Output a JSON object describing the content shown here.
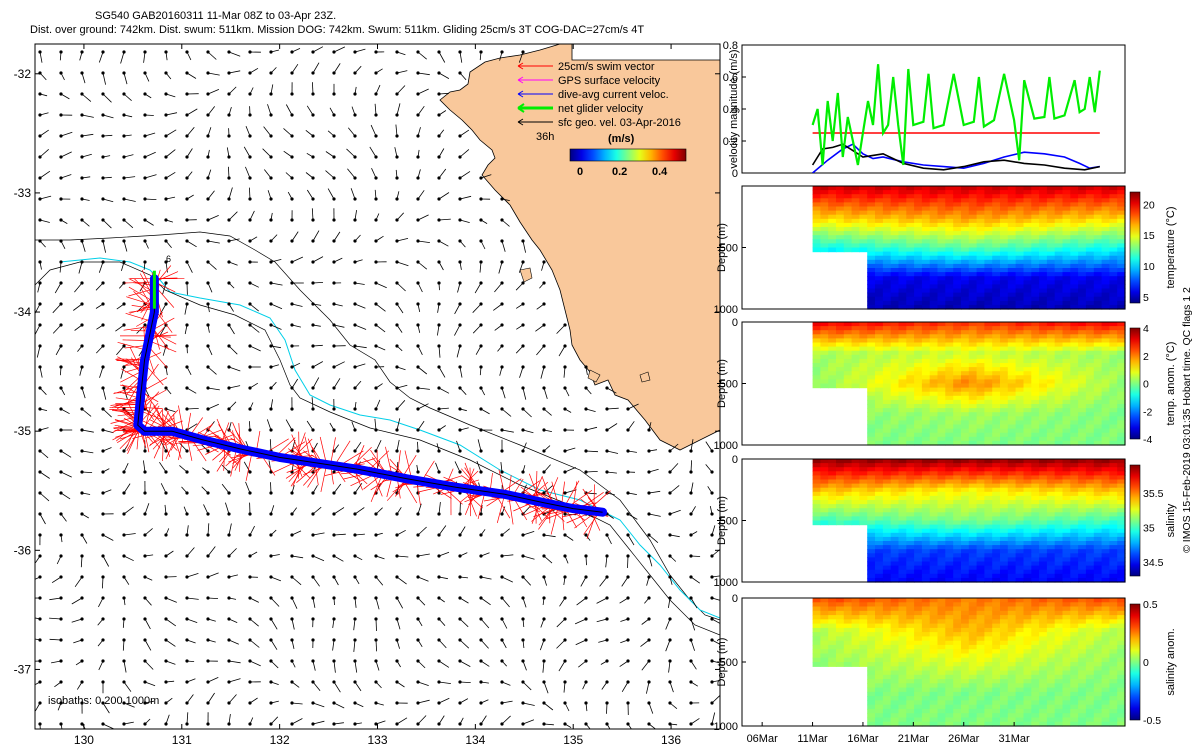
{
  "header": {
    "line1": "SG540 GAB20160311 11-Mar 08Z to 03-Apr 23Z.",
    "line2": "Dist. over ground: 742km. Dist. swum: 511km. Mission DOG: 742km. Swum: 511km. Gliding 25cm/s 3T COG-DAC=27cm/s 4T"
  },
  "side_note": "© IMOS 15-Feb-2019 03:01:35 Hobart time. QC flags 1 2",
  "colors": {
    "land": "#f9c89b",
    "swim_vector": "#ff0000",
    "gps_velocity": "#ff00ff",
    "dive_avg_current": "#0000ff",
    "net_glider": "#00ee00",
    "sfc_geo": "#000000",
    "isobath_200": "#00cfe8"
  },
  "chart_data": [
    {
      "type": "scatter",
      "panel": "map",
      "x_ticks": [
        "130",
        "131",
        "132",
        "133",
        "134",
        "135",
        "136"
      ],
      "y_ticks": [
        "-32",
        "-33",
        "-34",
        "-35",
        "-36",
        "-37"
      ],
      "xlim": [
        129.5,
        136.5
      ],
      "ylim": [
        -37.5,
        -31.75
      ],
      "legend": {
        "position": "top-right",
        "entries": [
          {
            "label": "25cm/s swim vector",
            "color": "#ff0000"
          },
          {
            "label": "GPS surface velocity",
            "color": "#ff00ff"
          },
          {
            "label": "dive-avg current veloc.",
            "color": "#0000ff"
          },
          {
            "label": "net glider velocity",
            "color": "#00ee00"
          },
          {
            "label": "sfc geo. vel. 03-Apr-2016",
            "color": "#000000"
          }
        ],
        "time_label": "36h",
        "colorbar_title": "(m/s)",
        "colorbar_ticks": [
          "0",
          "0.2",
          "0.4"
        ]
      },
      "isobath_label": "isobaths: 0   200  1000m",
      "start_marker": "6",
      "track": {
        "lon": [
          130.72,
          130.72,
          130.62,
          130.58,
          130.55,
          130.62,
          130.9,
          131.2,
          131.6,
          132.0,
          132.4,
          132.8,
          133.3,
          133.8,
          134.3,
          134.7,
          135.0,
          135.3
        ],
        "lat": [
          -33.72,
          -34.0,
          -34.4,
          -34.7,
          -34.95,
          -35.0,
          -35.0,
          -35.07,
          -35.15,
          -35.22,
          -35.27,
          -35.32,
          -35.4,
          -35.47,
          -35.53,
          -35.6,
          -35.65,
          -35.68
        ]
      }
    },
    {
      "type": "line",
      "panel": "velocity",
      "ylabel": "velocity magnitude (m/s)",
      "ylim": [
        0,
        0.8
      ],
      "y_ticks": [
        "0",
        "0.2",
        "0.4",
        "0.6",
        "0.8"
      ],
      "series": [
        {
          "color": "#ff0000",
          "x": [
            11,
            39.5
          ],
          "values": [
            0.25,
            0.25
          ]
        },
        {
          "color": "#0000ff",
          "x": [
            11,
            12.5,
            14,
            15,
            16,
            17,
            18,
            20,
            22,
            24,
            26,
            28,
            30,
            32,
            34,
            36,
            37.5,
            38.5,
            39.5
          ],
          "values": [
            0.0,
            0.08,
            0.15,
            0.18,
            0.12,
            0.09,
            0.1,
            0.07,
            0.05,
            0.04,
            0.03,
            0.06,
            0.1,
            0.13,
            0.12,
            0.1,
            0.06,
            0.03,
            0.04
          ]
        },
        {
          "color": "#000000",
          "x": [
            11,
            12,
            13,
            14,
            15,
            16,
            17,
            18,
            19,
            20,
            22,
            24,
            26,
            28,
            30,
            32,
            34,
            36,
            38,
            39.5
          ],
          "values": [
            0.05,
            0.15,
            0.16,
            0.18,
            0.14,
            0.1,
            0.11,
            0.12,
            0.09,
            0.06,
            0.03,
            0.02,
            0.04,
            0.07,
            0.08,
            0.06,
            0.05,
            0.03,
            0.02,
            0.04
          ]
        },
        {
          "color": "#00ee00",
          "x": [
            11,
            11.5,
            12,
            12.5,
            13,
            13.5,
            14,
            14.5,
            15,
            15.5,
            16,
            16.5,
            17,
            17.5,
            18,
            18.5,
            19,
            19.5,
            20,
            20.5,
            21,
            22,
            22.5,
            23,
            24,
            25,
            26,
            27,
            27.5,
            28,
            29,
            30,
            31,
            31.5,
            32,
            33,
            34,
            34.5,
            35,
            36,
            37,
            37.5,
            38,
            38.5,
            39,
            39.5
          ],
          "values": [
            0.3,
            0.4,
            0.05,
            0.45,
            0.2,
            0.5,
            0.1,
            0.35,
            0.2,
            0.05,
            0.25,
            0.45,
            0.3,
            0.68,
            0.25,
            0.3,
            0.6,
            0.3,
            0.05,
            0.65,
            0.3,
            0.32,
            0.62,
            0.28,
            0.3,
            0.62,
            0.3,
            0.32,
            0.6,
            0.29,
            0.33,
            0.62,
            0.33,
            0.08,
            0.58,
            0.34,
            0.35,
            0.6,
            0.34,
            0.36,
            0.58,
            0.38,
            0.4,
            0.6,
            0.38,
            0.64
          ]
        }
      ]
    },
    {
      "type": "heatmap",
      "panel": "temperature",
      "ylabel": "Depth (m)",
      "colorbar_label": "temperature (°C)",
      "colorbar_ticks": [
        "5",
        "10",
        "15",
        "20"
      ],
      "colorbar_range": [
        4,
        22
      ],
      "ylim": [
        1000,
        0
      ],
      "y_ticks": [
        "500",
        "1000"
      ],
      "values": [
        [
          20.5,
          20.5,
          20.5
        ],
        [
          16,
          17,
          16
        ],
        [
          11,
          12.5,
          11
        ],
        [
          6,
          6,
          6
        ],
        [
          5,
          5,
          5
        ]
      ]
    },
    {
      "type": "heatmap",
      "panel": "temperature-anomaly",
      "ylabel": "Depth (m)",
      "colorbar_label": "temp. anom. (°C)",
      "colorbar_ticks": [
        "-4",
        "-2",
        "0",
        "2",
        "4"
      ],
      "colorbar_range": [
        -4,
        4
      ],
      "ylim": [
        1000,
        0
      ],
      "y_ticks": [
        "0",
        "500",
        "1000"
      ],
      "values": [
        [
          3,
          2.5,
          3
        ],
        [
          0.3,
          0.6,
          0.2
        ],
        [
          0.1,
          2,
          0.2
        ],
        [
          0,
          0.3,
          0
        ],
        [
          0,
          0,
          0
        ]
      ]
    },
    {
      "type": "heatmap",
      "panel": "salinity",
      "ylabel": "Depth (m)",
      "colorbar_label": "salinity",
      "colorbar_ticks": [
        "34.5",
        "35",
        "35.5"
      ],
      "colorbar_range": [
        34.3,
        35.9
      ],
      "ylim": [
        1000,
        0
      ],
      "y_ticks": [
        "0",
        "500",
        "1000"
      ],
      "values": [
        [
          35.85,
          35.85,
          35.85
        ],
        [
          35.4,
          35.3,
          35.4
        ],
        [
          35.0,
          35.1,
          35.0
        ],
        [
          34.6,
          34.6,
          34.6
        ],
        [
          34.5,
          34.5,
          34.5
        ]
      ]
    },
    {
      "type": "heatmap",
      "panel": "salinity-anomaly",
      "ylabel": "Depth (m)",
      "colorbar_label": "salinity anom.",
      "colorbar_ticks": [
        "-0.5",
        "0",
        "0.5"
      ],
      "colorbar_range": [
        -0.5,
        0.5
      ],
      "ylim": [
        1000,
        0
      ],
      "y_ticks": [
        "0",
        "500",
        "1000"
      ],
      "x_ticks": [
        "06Mar",
        "11Mar",
        "16Mar",
        "21Mar",
        "26Mar",
        "31Mar"
      ],
      "values": [
        [
          0.3,
          0.25,
          0.3
        ],
        [
          0.05,
          0.2,
          0.05
        ],
        [
          0.02,
          0.1,
          0.02
        ],
        [
          0,
          0,
          0
        ],
        [
          0,
          0,
          0
        ]
      ]
    }
  ]
}
